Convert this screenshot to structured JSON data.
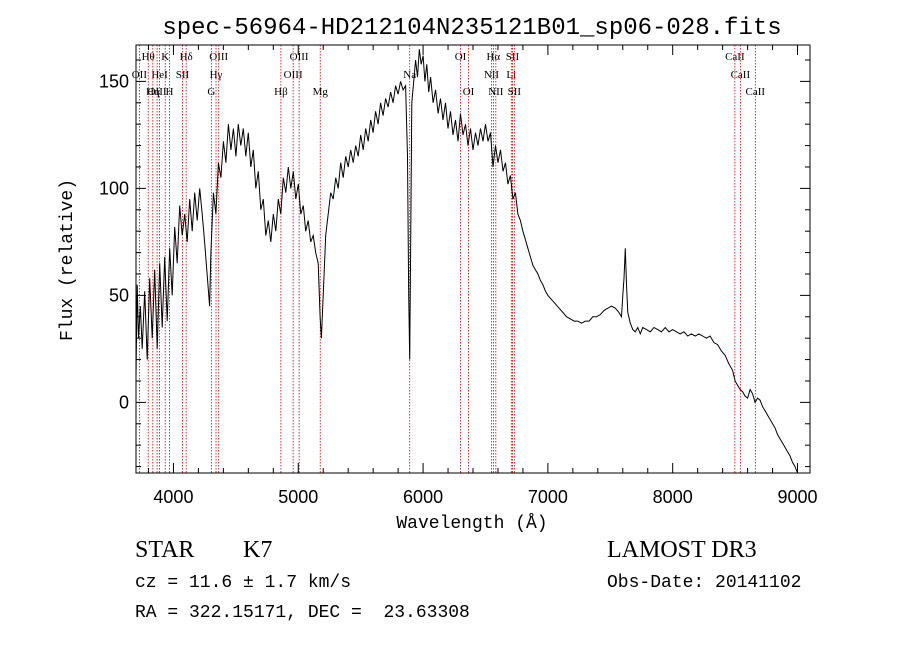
{
  "chart_data": {
    "type": "line",
    "title": "spec-56964-HD212104N235121B01_sp06-028.fits",
    "xlabel": "Wavelength (Å)",
    "ylabel": "Flux (relative)",
    "xlim": [
      3700,
      9100
    ],
    "ylim": [
      -33,
      167
    ],
    "xticks": [
      4000,
      5000,
      6000,
      7000,
      8000,
      9000
    ],
    "yticks": [
      0,
      50,
      100,
      150
    ],
    "grid": false,
    "series": [
      {
        "color": "#000000",
        "points": [
          [
            3700,
            12
          ],
          [
            3710,
            55
          ],
          [
            3720,
            30
          ],
          [
            3735,
            45
          ],
          [
            3750,
            25
          ],
          [
            3770,
            52
          ],
          [
            3790,
            20
          ],
          [
            3810,
            58
          ],
          [
            3830,
            30
          ],
          [
            3850,
            62
          ],
          [
            3870,
            25
          ],
          [
            3890,
            65
          ],
          [
            3910,
            35
          ],
          [
            3930,
            68
          ],
          [
            3950,
            38
          ],
          [
            3970,
            72
          ],
          [
            3990,
            50
          ],
          [
            4010,
            82
          ],
          [
            4030,
            65
          ],
          [
            4050,
            92
          ],
          [
            4070,
            78
          ],
          [
            4090,
            88
          ],
          [
            4110,
            75
          ],
          [
            4130,
            95
          ],
          [
            4150,
            80
          ],
          [
            4170,
            98
          ],
          [
            4190,
            85
          ],
          [
            4210,
            100
          ],
          [
            4230,
            88
          ],
          [
            4250,
            75
          ],
          [
            4270,
            60
          ],
          [
            4290,
            45
          ],
          [
            4300,
            70
          ],
          [
            4320,
            98
          ],
          [
            4340,
            88
          ],
          [
            4360,
            112
          ],
          [
            4380,
            105
          ],
          [
            4400,
            122
          ],
          [
            4420,
            112
          ],
          [
            4440,
            130
          ],
          [
            4460,
            118
          ],
          [
            4480,
            128
          ],
          [
            4500,
            115
          ],
          [
            4520,
            130
          ],
          [
            4540,
            120
          ],
          [
            4560,
            128
          ],
          [
            4580,
            115
          ],
          [
            4600,
            126
          ],
          [
            4620,
            110
          ],
          [
            4640,
            118
          ],
          [
            4660,
            100
          ],
          [
            4680,
            108
          ],
          [
            4700,
            90
          ],
          [
            4720,
            95
          ],
          [
            4740,
            78
          ],
          [
            4760,
            85
          ],
          [
            4780,
            75
          ],
          [
            4800,
            88
          ],
          [
            4820,
            80
          ],
          [
            4840,
            95
          ],
          [
            4860,
            88
          ],
          [
            4880,
            105
          ],
          [
            4900,
            98
          ],
          [
            4920,
            110
          ],
          [
            4940,
            100
          ],
          [
            4960,
            108
          ],
          [
            4980,
            95
          ],
          [
            5000,
            102
          ],
          [
            5020,
            88
          ],
          [
            5040,
            92
          ],
          [
            5060,
            80
          ],
          [
            5080,
            85
          ],
          [
            5100,
            75
          ],
          [
            5120,
            78
          ],
          [
            5140,
            70
          ],
          [
            5160,
            65
          ],
          [
            5175,
            40
          ],
          [
            5185,
            30
          ],
          [
            5200,
            50
          ],
          [
            5220,
            78
          ],
          [
            5240,
            88
          ],
          [
            5260,
            98
          ],
          [
            5280,
            95
          ],
          [
            5300,
            105
          ],
          [
            5320,
            100
          ],
          [
            5340,
            112
          ],
          [
            5360,
            105
          ],
          [
            5380,
            115
          ],
          [
            5400,
            110
          ],
          [
            5420,
            118
          ],
          [
            5440,
            112
          ],
          [
            5460,
            120
          ],
          [
            5480,
            115
          ],
          [
            5500,
            125
          ],
          [
            5520,
            118
          ],
          [
            5540,
            128
          ],
          [
            5560,
            122
          ],
          [
            5580,
            132
          ],
          [
            5600,
            126
          ],
          [
            5620,
            136
          ],
          [
            5640,
            130
          ],
          [
            5660,
            140
          ],
          [
            5680,
            134
          ],
          [
            5700,
            142
          ],
          [
            5720,
            138
          ],
          [
            5740,
            145
          ],
          [
            5760,
            140
          ],
          [
            5780,
            148
          ],
          [
            5800,
            144
          ],
          [
            5820,
            150
          ],
          [
            5840,
            146
          ],
          [
            5860,
            148
          ],
          [
            5875,
            115
          ],
          [
            5885,
            50
          ],
          [
            5893,
            20
          ],
          [
            5900,
            70
          ],
          [
            5910,
            140
          ],
          [
            5925,
            150
          ],
          [
            5940,
            160
          ],
          [
            5955,
            152
          ],
          [
            5970,
            165
          ],
          [
            5985,
            158
          ],
          [
            6000,
            162
          ],
          [
            6015,
            150
          ],
          [
            6030,
            158
          ],
          [
            6045,
            145
          ],
          [
            6060,
            152
          ],
          [
            6080,
            140
          ],
          [
            6100,
            146
          ],
          [
            6120,
            135
          ],
          [
            6140,
            142
          ],
          [
            6160,
            132
          ],
          [
            6180,
            140
          ],
          [
            6200,
            128
          ],
          [
            6220,
            136
          ],
          [
            6240,
            125
          ],
          [
            6260,
            132
          ],
          [
            6280,
            122
          ],
          [
            6300,
            135
          ],
          [
            6320,
            125
          ],
          [
            6340,
            130
          ],
          [
            6360,
            120
          ],
          [
            6380,
            128
          ],
          [
            6400,
            118
          ],
          [
            6420,
            126
          ],
          [
            6440,
            120
          ],
          [
            6460,
            128
          ],
          [
            6480,
            122
          ],
          [
            6500,
            130
          ],
          [
            6520,
            122
          ],
          [
            6540,
            126
          ],
          [
            6560,
            110
          ],
          [
            6580,
            120
          ],
          [
            6600,
            112
          ],
          [
            6620,
            118
          ],
          [
            6640,
            108
          ],
          [
            6660,
            112
          ],
          [
            6680,
            102
          ],
          [
            6700,
            106
          ],
          [
            6720,
            95
          ],
          [
            6740,
            98
          ],
          [
            6760,
            88
          ],
          [
            6780,
            85
          ],
          [
            6800,
            80
          ],
          [
            6820,
            76
          ],
          [
            6840,
            72
          ],
          [
            6860,
            68
          ],
          [
            6880,
            64
          ],
          [
            6900,
            62
          ],
          [
            6920,
            60
          ],
          [
            6940,
            57
          ],
          [
            6960,
            55
          ],
          [
            6980,
            52
          ],
          [
            7000,
            50
          ],
          [
            7030,
            48
          ],
          [
            7060,
            46
          ],
          [
            7090,
            44
          ],
          [
            7120,
            42
          ],
          [
            7150,
            40
          ],
          [
            7180,
            39
          ],
          [
            7210,
            38
          ],
          [
            7240,
            38
          ],
          [
            7270,
            37
          ],
          [
            7300,
            38
          ],
          [
            7330,
            38
          ],
          [
            7360,
            40
          ],
          [
            7390,
            40
          ],
          [
            7420,
            41
          ],
          [
            7450,
            43
          ],
          [
            7480,
            44
          ],
          [
            7510,
            45
          ],
          [
            7540,
            44
          ],
          [
            7570,
            42
          ],
          [
            7590,
            40
          ],
          [
            7600,
            50
          ],
          [
            7610,
            58
          ],
          [
            7620,
            72
          ],
          [
            7630,
            55
          ],
          [
            7640,
            42
          ],
          [
            7660,
            37
          ],
          [
            7680,
            34
          ],
          [
            7700,
            33
          ],
          [
            7720,
            35
          ],
          [
            7740,
            32
          ],
          [
            7760,
            35
          ],
          [
            7790,
            34
          ],
          [
            7820,
            33
          ],
          [
            7850,
            35
          ],
          [
            7880,
            34
          ],
          [
            7910,
            33
          ],
          [
            7940,
            35
          ],
          [
            7970,
            33
          ],
          [
            8000,
            34
          ],
          [
            8030,
            33
          ],
          [
            8060,
            32
          ],
          [
            8090,
            33
          ],
          [
            8120,
            31
          ],
          [
            8150,
            32
          ],
          [
            8180,
            31
          ],
          [
            8210,
            32
          ],
          [
            8240,
            31
          ],
          [
            8270,
            30
          ],
          [
            8300,
            31
          ],
          [
            8330,
            28
          ],
          [
            8360,
            27
          ],
          [
            8390,
            24
          ],
          [
            8420,
            22
          ],
          [
            8450,
            18
          ],
          [
            8480,
            15
          ],
          [
            8500,
            10
          ],
          [
            8520,
            8
          ],
          [
            8540,
            6
          ],
          [
            8560,
            5
          ],
          [
            8580,
            3
          ],
          [
            8600,
            2
          ],
          [
            8620,
            6
          ],
          [
            8640,
            4
          ],
          [
            8660,
            0
          ],
          [
            8680,
            2
          ],
          [
            8700,
            1
          ],
          [
            8720,
            -2
          ],
          [
            8740,
            -4
          ],
          [
            8760,
            -6
          ],
          [
            8780,
            -8
          ],
          [
            8800,
            -10
          ],
          [
            8820,
            -12
          ],
          [
            8840,
            -15
          ],
          [
            8860,
            -17
          ],
          [
            8880,
            -19
          ],
          [
            8900,
            -21
          ],
          [
            8920,
            -23
          ],
          [
            8940,
            -25
          ],
          [
            8960,
            -28
          ],
          [
            8980,
            -30
          ],
          [
            9000,
            -33
          ]
        ]
      }
    ],
    "line_markers": [
      {
        "wavelength": 3798,
        "label": "Hθ",
        "row": 0
      },
      {
        "wavelength": 3727,
        "label": "OII",
        "row": 1
      },
      {
        "wavelength": 3835,
        "label": "Hη",
        "row": 2
      },
      {
        "wavelength": 3869,
        "label": "OIII",
        "row": 2
      },
      {
        "wavelength": 3889,
        "label": "HeI",
        "row": 1
      },
      {
        "wavelength": 3934,
        "label": "K",
        "row": 0
      },
      {
        "wavelength": 3968,
        "label": "H",
        "row": 2
      },
      {
        "wavelength": 4072,
        "label": "SII",
        "row": 1
      },
      {
        "wavelength": 4102,
        "label": "Hδ",
        "row": 0
      },
      {
        "wavelength": 4304,
        "label": "G",
        "row": 2
      },
      {
        "wavelength": 4341,
        "label": "Hγ",
        "row": 1
      },
      {
        "wavelength": 4363,
        "label": "OIII",
        "row": 0
      },
      {
        "wavelength": 4861,
        "label": "Hβ",
        "row": 2
      },
      {
        "wavelength": 4959,
        "label": "OIII",
        "row": 1
      },
      {
        "wavelength": 5007,
        "label": "OIII",
        "row": 0
      },
      {
        "wavelength": 5176,
        "label": "Mg",
        "row": 2
      },
      {
        "wavelength": 5893,
        "label": "Na",
        "row": 1
      },
      {
        "wavelength": 6300,
        "label": "OI",
        "row": 0
      },
      {
        "wavelength": 6364,
        "label": "OI",
        "row": 2
      },
      {
        "wavelength": 6548,
        "label": "NII",
        "row": 1
      },
      {
        "wavelength": 6563,
        "label": "Hα",
        "row": 0
      },
      {
        "wavelength": 6583,
        "label": "NII",
        "row": 2
      },
      {
        "wavelength": 6707,
        "label": "Li",
        "row": 1
      },
      {
        "wavelength": 6716,
        "label": "SII",
        "row": 0
      },
      {
        "wavelength": 6731,
        "label": "SII",
        "row": 2
      },
      {
        "wavelength": 8498,
        "label": "CaII",
        "row": 0
      },
      {
        "wavelength": 8542,
        "label": "CaII",
        "row": 1
      },
      {
        "wavelength": 8662,
        "label": "CaII",
        "row": 2
      }
    ]
  },
  "info": {
    "class_type": "STAR",
    "subclass": "K7",
    "survey": "LAMOST DR3",
    "cz": "cz = 11.6 ± 1.7 km/s",
    "obs_date": "Obs-Date: 20141102",
    "ra_dec": "RA = 322.15171, DEC =  23.63308"
  },
  "colors": {
    "spectrum": "#000000",
    "marker_lines": "#cc0000",
    "axes": "#000000"
  }
}
